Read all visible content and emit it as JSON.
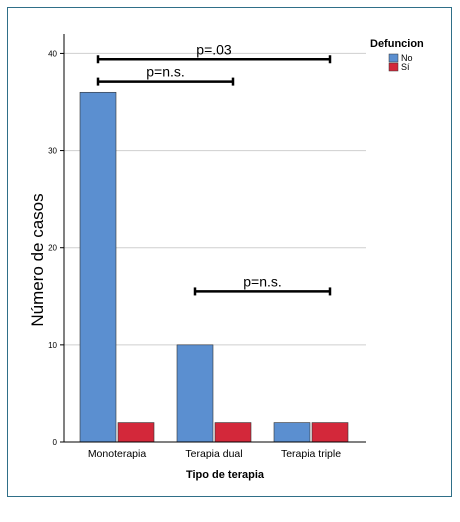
{
  "chart_data": {
    "type": "bar",
    "categories": [
      "Monoterapia",
      "Terapia dual",
      "Terapia triple"
    ],
    "series": [
      {
        "name": "No",
        "color": "#5b8fd0",
        "values": [
          36,
          10,
          2
        ]
      },
      {
        "name": "Sí",
        "color": "#d3283a",
        "values": [
          2,
          2,
          2
        ]
      }
    ],
    "xlabel": "Tipo de terapia",
    "ylabel": "Número de casos",
    "ylim": [
      0,
      42
    ],
    "yticks": [
      0,
      10,
      20,
      30,
      40
    ],
    "grid": true,
    "legend": {
      "title": "Defuncion",
      "placement": "top-right"
    },
    "annotations": [
      {
        "label": "p=.03",
        "from_category": 0,
        "to_category": 2,
        "value": 39.4
      },
      {
        "label": "p=n.s.",
        "from_category": 0,
        "to_category": 1,
        "value": 37.1
      },
      {
        "label": "p=n.s.",
        "from_category": 1,
        "to_category": 2,
        "value": 15.5
      }
    ]
  }
}
